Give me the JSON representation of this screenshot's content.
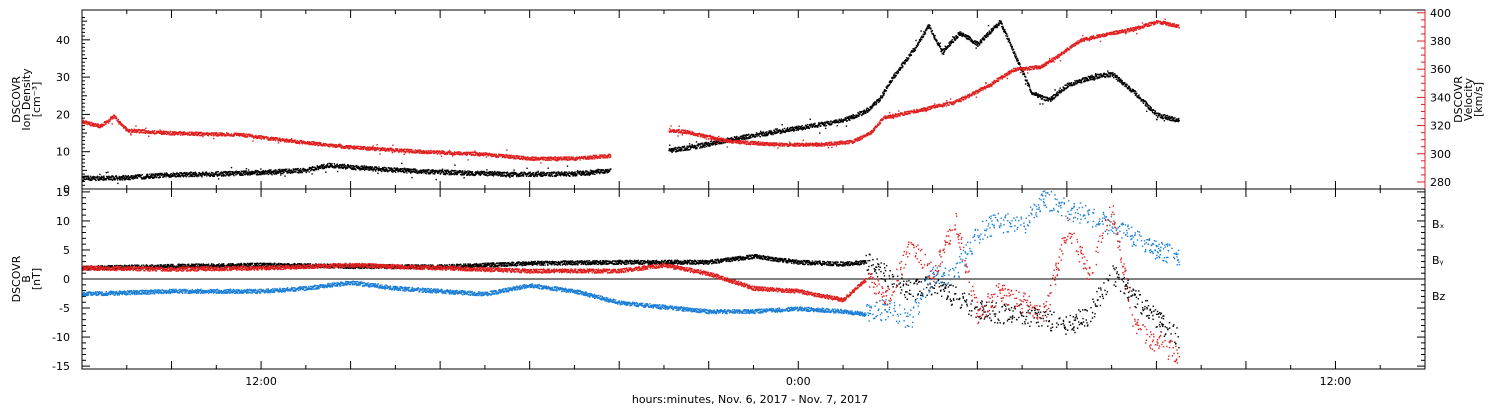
{
  "xlabel": "hours:minutes, Nov.  6, 2017 - Nov.  7, 2017",
  "x_axis": {
    "range_hours": [
      -16,
      14
    ],
    "labels": [
      {
        "t": -12,
        "text": "12:00"
      },
      {
        "t": 0,
        "text": "0:00"
      },
      {
        "t": 12,
        "text": "12:00"
      }
    ]
  },
  "colors": {
    "black": "#000000",
    "red": "#e02020",
    "blue": "#1c7fd6"
  },
  "chart_data": [
    {
      "type": "scatter",
      "panel": "top",
      "ylabel_left": [
        "DSCOVR",
        "Ion Density",
        "[cm⁻³]"
      ],
      "ylabel_right": [
        "DSCOVR",
        "Velocity",
        "[km/s]"
      ],
      "ylim_left": [
        0,
        48
      ],
      "ylim_right": [
        275,
        402
      ],
      "left_ticks": [
        0,
        10,
        20,
        30,
        40
      ],
      "right_ticks": [
        280,
        300,
        320,
        340,
        360,
        380,
        400
      ],
      "series": [
        {
          "axis": "left",
          "color": "black",
          "segments": [
            [
              [
                -16.0,
                3.0
              ],
              [
                -15.0,
                3.2
              ],
              [
                -14.0,
                4.0
              ],
              [
                -13.0,
                4.2
              ],
              [
                -12.0,
                4.6
              ],
              [
                -11.0,
                5.2
              ],
              [
                -10.5,
                6.5
              ],
              [
                -9.5,
                5.6
              ],
              [
                -8.5,
                4.9
              ],
              [
                -7.5,
                4.5
              ],
              [
                -6.5,
                4.1
              ],
              [
                -5.0,
                4.2
              ],
              [
                -4.2,
                5.2
              ]
            ],
            [
              [
                -2.9,
                10.5
              ],
              [
                -2.4,
                11.3
              ],
              [
                -1.5,
                13.5
              ],
              [
                -0.5,
                15.5
              ],
              [
                0.5,
                17.5
              ],
              [
                1.0,
                18.5
              ],
              [
                1.5,
                21.0
              ],
              [
                1.8,
                24.0
              ],
              [
                2.1,
                30.0
              ],
              [
                2.6,
                38.0
              ],
              [
                2.9,
                44.0
              ],
              [
                3.2,
                37.0
              ],
              [
                3.6,
                42.0
              ],
              [
                4.0,
                39.0
              ],
              [
                4.5,
                45.0
              ],
              [
                4.8,
                37.0
              ],
              [
                5.2,
                26.0
              ],
              [
                5.6,
                24.0
              ],
              [
                6.0,
                28.0
              ],
              [
                6.5,
                30.0
              ],
              [
                7.0,
                31.0
              ],
              [
                7.5,
                26.0
              ],
              [
                8.0,
                20.0
              ],
              [
                8.5,
                18.5
              ]
            ]
          ]
        },
        {
          "axis": "right",
          "color": "red",
          "segments": [
            [
              [
                -16.0,
                323.0
              ],
              [
                -15.6,
                320.0
              ],
              [
                -15.3,
                327.0
              ],
              [
                -15.0,
                317.0
              ],
              [
                -14.0,
                315.0
              ],
              [
                -12.5,
                314.0
              ],
              [
                -11.5,
                310.0
              ],
              [
                -10.0,
                305.0
              ],
              [
                -8.5,
                302.0
              ],
              [
                -7.0,
                300.0
              ],
              [
                -6.0,
                297.0
              ],
              [
                -5.0,
                297.0
              ],
              [
                -4.2,
                299.0
              ]
            ],
            [
              [
                -2.9,
                317.0
              ],
              [
                -2.5,
                316.0
              ],
              [
                -2.0,
                312.0
              ],
              [
                -1.5,
                309.0
              ],
              [
                -0.5,
                307.0
              ],
              [
                0.5,
                307.0
              ],
              [
                1.2,
                309.0
              ],
              [
                1.6,
                315.0
              ],
              [
                1.9,
                326.0
              ],
              [
                2.5,
                330.0
              ],
              [
                3.5,
                337.0
              ],
              [
                4.2,
                348.0
              ],
              [
                4.8,
                360.0
              ],
              [
                5.4,
                362.0
              ],
              [
                5.8,
                370.0
              ],
              [
                6.3,
                381.0
              ],
              [
                7.0,
                386.0
              ],
              [
                7.5,
                389.0
              ],
              [
                8.0,
                394.0
              ],
              [
                8.5,
                391.0
              ]
            ]
          ]
        }
      ]
    },
    {
      "type": "scatter",
      "panel": "bottom",
      "ylabel_left": [
        "DSCOVR",
        "B",
        "[nT]"
      ],
      "ylim": [
        -15.5,
        15.5
      ],
      "ticks": [
        -15,
        -10,
        -5,
        0,
        5,
        10,
        15
      ],
      "zero_line": true,
      "legend": [
        {
          "text": "Bₓ",
          "color": "black"
        },
        {
          "text": "Bᵧ",
          "color": "blue"
        },
        {
          "text": "B_z",
          "color": "red"
        }
      ],
      "series": [
        {
          "name": "Bx",
          "color": "black",
          "points": [
            [
              -16.0,
              2.0
            ],
            [
              -14.0,
              2.3
            ],
            [
              -12.0,
              2.5
            ],
            [
              -10.0,
              2.3
            ],
            [
              -8.0,
              2.2
            ],
            [
              -6.0,
              2.8
            ],
            [
              -4.0,
              3.0
            ],
            [
              -2.0,
              3.0
            ],
            [
              -1.0,
              4.0
            ],
            [
              0.0,
              3.0
            ],
            [
              1.0,
              2.7
            ],
            [
              1.5,
              3.0
            ],
            [
              2.0,
              0.5
            ],
            [
              2.5,
              -2.0
            ],
            [
              3.0,
              -1.0
            ],
            [
              3.5,
              -3.0
            ],
            [
              4.0,
              -5.0
            ],
            [
              4.5,
              -6.0
            ],
            [
              5.0,
              -6.0
            ],
            [
              5.5,
              -7.0
            ],
            [
              6.0,
              -8.0
            ],
            [
              6.5,
              -6.0
            ],
            [
              7.0,
              1.0
            ],
            [
              7.5,
              -3.0
            ],
            [
              8.0,
              -7.0
            ],
            [
              8.5,
              -10.0
            ]
          ]
        },
        {
          "name": "By",
          "color": "blue",
          "points": [
            [
              -16.0,
              -2.5
            ],
            [
              -14.0,
              -2.0
            ],
            [
              -12.0,
              -2.0
            ],
            [
              -11.0,
              -1.5
            ],
            [
              -10.0,
              -0.5
            ],
            [
              -9.0,
              -1.5
            ],
            [
              -8.0,
              -2.0
            ],
            [
              -7.0,
              -2.5
            ],
            [
              -6.0,
              -1.0
            ],
            [
              -5.0,
              -2.0
            ],
            [
              -4.0,
              -4.0
            ],
            [
              -2.0,
              -5.5
            ],
            [
              -1.0,
              -5.5
            ],
            [
              0.0,
              -5.0
            ],
            [
              1.0,
              -5.5
            ],
            [
              1.5,
              -6.0
            ],
            [
              2.0,
              -5.0
            ],
            [
              2.5,
              -7.0
            ],
            [
              3.0,
              1.0
            ],
            [
              3.5,
              1.0
            ],
            [
              4.0,
              8.0
            ],
            [
              4.5,
              10.0
            ],
            [
              5.0,
              9.0
            ],
            [
              5.5,
              14.0
            ],
            [
              6.0,
              12.0
            ],
            [
              6.5,
              11.0
            ],
            [
              7.0,
              9.0
            ],
            [
              7.5,
              7.0
            ],
            [
              8.0,
              5.0
            ],
            [
              8.5,
              4.0
            ]
          ]
        },
        {
          "name": "Bz",
          "color": "red",
          "points": [
            [
              -16.0,
              2.0
            ],
            [
              -14.0,
              1.8
            ],
            [
              -12.0,
              2.0
            ],
            [
              -10.0,
              2.5
            ],
            [
              -8.0,
              2.0
            ],
            [
              -6.0,
              1.5
            ],
            [
              -4.0,
              1.5
            ],
            [
              -3.0,
              2.5
            ],
            [
              -2.0,
              1.0
            ],
            [
              -1.0,
              -1.5
            ],
            [
              0.0,
              -2.0
            ],
            [
              1.0,
              -3.5
            ],
            [
              1.5,
              0.0
            ],
            [
              2.0,
              -3.0
            ],
            [
              2.5,
              6.0
            ],
            [
              3.0,
              1.0
            ],
            [
              3.5,
              10.0
            ],
            [
              4.0,
              -6.0
            ],
            [
              4.5,
              -2.0
            ],
            [
              5.0,
              -4.0
            ],
            [
              5.5,
              -6.0
            ],
            [
              6.0,
              9.0
            ],
            [
              6.5,
              1.0
            ],
            [
              7.0,
              12.0
            ],
            [
              7.5,
              -8.0
            ],
            [
              8.0,
              -11.0
            ],
            [
              8.5,
              -13.0
            ]
          ]
        }
      ]
    }
  ]
}
